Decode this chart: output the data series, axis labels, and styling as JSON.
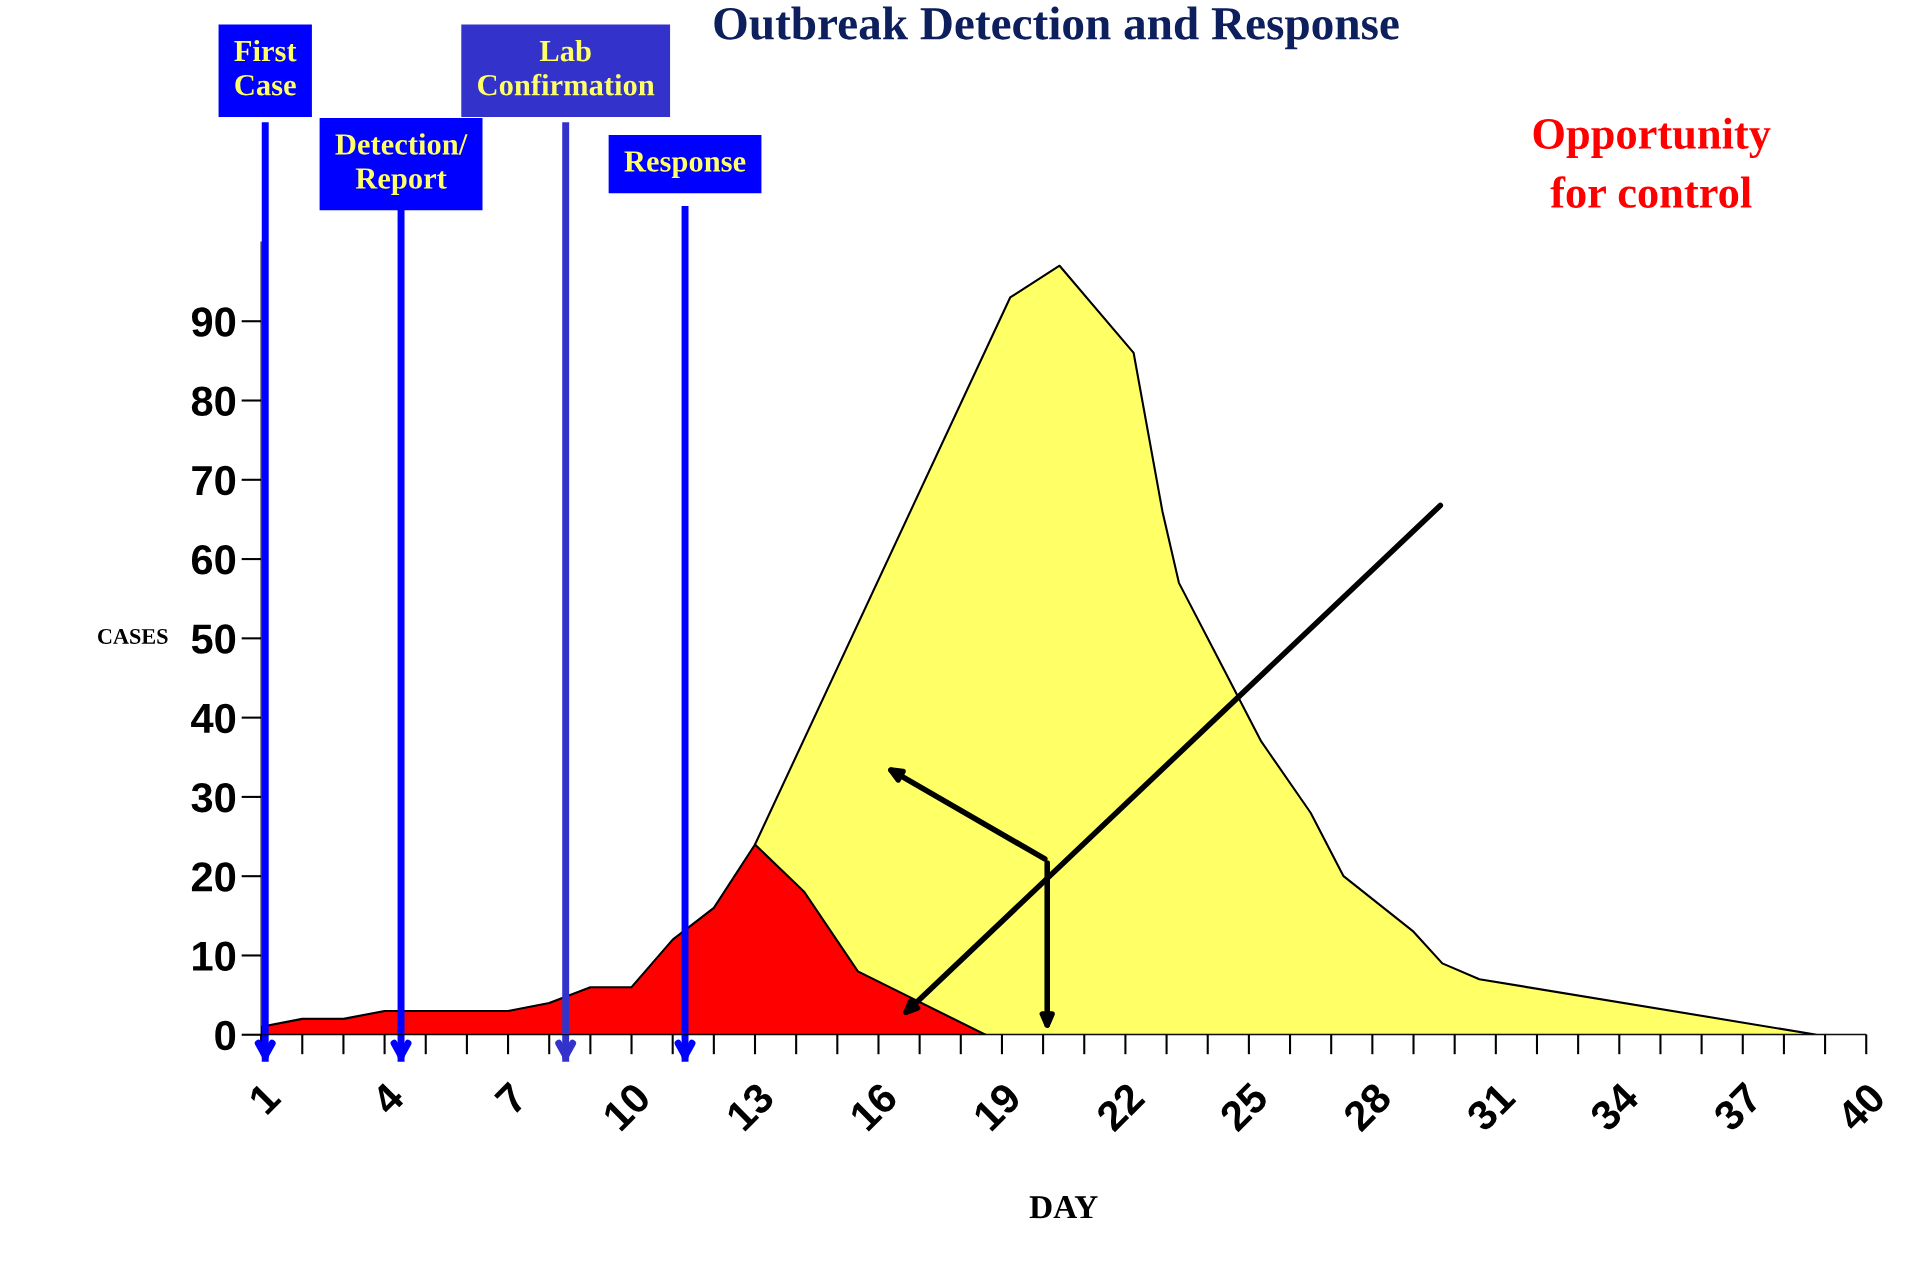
{
  "chart_data": {
    "type": "area",
    "title": "Outbreak Detection and Response",
    "xlabel": "DAY",
    "ylabel": "CASES",
    "series": [
      {
        "color": "#ffff66",
        "x": [
          13,
          19.2,
          20.4,
          22.2,
          22.9,
          23.3,
          24.4,
          25.3,
          26.5,
          27.3,
          29.0,
          29.7,
          30.6,
          38.8,
          40
        ],
        "values": [
          24,
          93,
          97,
          86,
          66,
          57,
          46,
          37,
          28,
          20,
          13,
          9,
          7,
          0,
          0
        ]
      },
      {
        "color": "#ff0000",
        "x": [
          1,
          2,
          3,
          4,
          5,
          6,
          7,
          8,
          9,
          10,
          11,
          12,
          13,
          14.2,
          15.5,
          18.6
        ],
        "values": [
          1,
          2,
          2,
          3,
          3,
          3,
          3,
          4,
          6,
          6,
          12,
          16,
          24,
          18,
          8,
          0
        ]
      }
    ],
    "xlim": [
      1,
      40
    ],
    "ylim": [
      0,
      100
    ],
    "xticks": [
      1,
      4,
      7,
      10,
      13,
      16,
      19,
      22,
      25,
      28,
      31,
      34,
      37,
      40
    ],
    "yticks": [
      0,
      10,
      20,
      30,
      40,
      50,
      60,
      70,
      80,
      90
    ],
    "ref_lines": [
      {
        "axis": "x",
        "value": 1.1,
        "label": "First\nCase",
        "color": "#0000ff"
      },
      {
        "axis": "x",
        "value": 4.4,
        "label": "Detection/\nReport",
        "color": "#0000ff"
      },
      {
        "axis": "x",
        "value": 8.4,
        "label": "Lab\nConfirmation",
        "color": "#3333cc"
      },
      {
        "axis": "x",
        "value": 11.3,
        "label": "Response",
        "color": "#0000ff"
      }
    ],
    "annotations": [
      "Opportunity\nfor control"
    ],
    "grid": false,
    "legend": false
  }
}
